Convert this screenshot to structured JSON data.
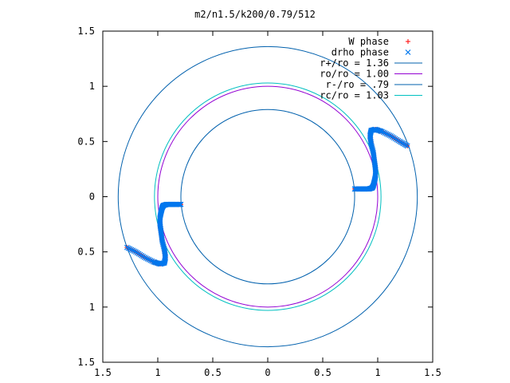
{
  "chart_data": {
    "type": "scatter",
    "title": "m2/n1.5/k200/0.79/512",
    "xlabel": "",
    "ylabel": "",
    "xlim": [
      -1.5,
      1.5
    ],
    "ylim": [
      -1.5,
      1.5
    ],
    "grid": false,
    "legend_position": "top-right",
    "x_ticks": [
      -1.5,
      -1,
      -0.5,
      0,
      0.5,
      1,
      1.5
    ],
    "y_ticks": [
      -1.5,
      -1,
      -0.5,
      0,
      0.5,
      1,
      1.5
    ],
    "x_tick_labels": [
      "1.5",
      "1",
      "0.5",
      "0",
      "0.5",
      "1",
      "1.5"
    ],
    "y_tick_labels": [
      "1.5",
      "1",
      "0.5",
      "0",
      "0.5",
      "1",
      "1.5"
    ],
    "circles": [
      {
        "name": "r+/ro = 1.36",
        "r": 1.36,
        "color": "#0060ad"
      },
      {
        "name": "ro/ro = 1.00",
        "r": 1.0,
        "color": "#9400d3"
      },
      {
        "name": "r-/ro = .79",
        "r": 0.79,
        "color": "#0060ad"
      },
      {
        "name": "rc/ro = 1.03",
        "r": 1.03,
        "color": "#00c0c0"
      }
    ],
    "series": [
      {
        "name": "W phase",
        "marker": "+",
        "color": "#ff0000",
        "points": [
          [
            1.27,
            0.46
          ],
          [
            1.2,
            0.5
          ],
          [
            1.12,
            0.55
          ],
          [
            1.04,
            0.59
          ],
          [
            0.98,
            0.61
          ],
          [
            0.94,
            0.6
          ],
          [
            0.93,
            0.55
          ],
          [
            0.94,
            0.48
          ],
          [
            0.96,
            0.4
          ],
          [
            0.97,
            0.32
          ],
          [
            0.98,
            0.25
          ],
          [
            0.98,
            0.19
          ],
          [
            0.97,
            0.14
          ],
          [
            0.96,
            0.1
          ],
          [
            0.95,
            0.08
          ],
          [
            0.92,
            0.07
          ],
          [
            0.88,
            0.07
          ],
          [
            0.84,
            0.07
          ],
          [
            0.79,
            0.07
          ],
          [
            -1.28,
            -0.46
          ],
          [
            -1.2,
            -0.5
          ],
          [
            -1.12,
            -0.55
          ],
          [
            -1.04,
            -0.59
          ],
          [
            -0.98,
            -0.61
          ],
          [
            -0.94,
            -0.6
          ],
          [
            -0.93,
            -0.55
          ],
          [
            -0.94,
            -0.48
          ],
          [
            -0.96,
            -0.4
          ],
          [
            -0.97,
            -0.32
          ],
          [
            -0.98,
            -0.25
          ],
          [
            -0.98,
            -0.19
          ],
          [
            -0.97,
            -0.14
          ],
          [
            -0.96,
            -0.1
          ],
          [
            -0.95,
            -0.08
          ],
          [
            -0.92,
            -0.07
          ],
          [
            -0.88,
            -0.07
          ],
          [
            -0.84,
            -0.07
          ],
          [
            -0.79,
            -0.07
          ]
        ]
      },
      {
        "name": "drho phase",
        "marker": "x",
        "color": "#0077ee",
        "points": [
          [
            1.27,
            0.46
          ],
          [
            1.2,
            0.5
          ],
          [
            1.12,
            0.55
          ],
          [
            1.04,
            0.59
          ],
          [
            0.98,
            0.61
          ],
          [
            0.94,
            0.6
          ],
          [
            0.93,
            0.55
          ],
          [
            0.94,
            0.48
          ],
          [
            0.96,
            0.4
          ],
          [
            0.97,
            0.32
          ],
          [
            0.98,
            0.25
          ],
          [
            0.98,
            0.19
          ],
          [
            0.97,
            0.14
          ],
          [
            0.96,
            0.1
          ],
          [
            0.95,
            0.08
          ],
          [
            0.92,
            0.07
          ],
          [
            0.88,
            0.07
          ],
          [
            0.84,
            0.07
          ],
          [
            0.79,
            0.07
          ],
          [
            -1.28,
            -0.46
          ],
          [
            -1.2,
            -0.5
          ],
          [
            -1.12,
            -0.55
          ],
          [
            -1.04,
            -0.59
          ],
          [
            -0.98,
            -0.61
          ],
          [
            -0.94,
            -0.6
          ],
          [
            -0.93,
            -0.55
          ],
          [
            -0.94,
            -0.48
          ],
          [
            -0.96,
            -0.4
          ],
          [
            -0.97,
            -0.32
          ],
          [
            -0.98,
            -0.25
          ],
          [
            -0.98,
            -0.19
          ],
          [
            -0.97,
            -0.14
          ],
          [
            -0.96,
            -0.1
          ],
          [
            -0.95,
            -0.08
          ],
          [
            -0.92,
            -0.07
          ],
          [
            -0.88,
            -0.07
          ],
          [
            -0.84,
            -0.07
          ],
          [
            -0.79,
            -0.07
          ]
        ]
      }
    ]
  }
}
